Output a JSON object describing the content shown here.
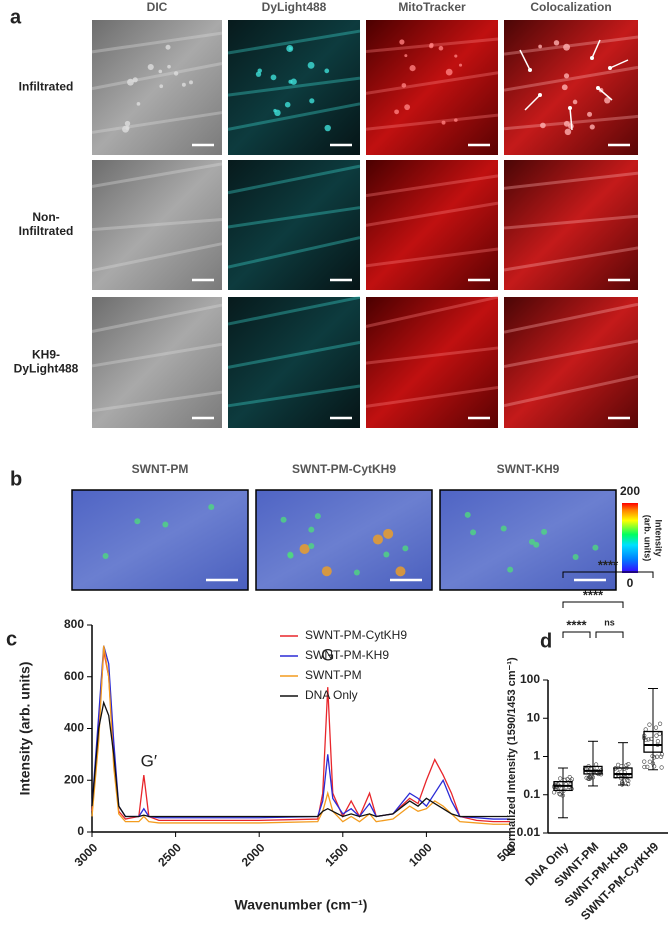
{
  "panel_a": {
    "label": "a",
    "columns": [
      "DIC",
      "DyLight488",
      "MitoTracker",
      "Colocalization"
    ],
    "rows": [
      "Infiltrated",
      "Non-\nInfiltrated",
      "KH9-\nDyLight488"
    ]
  },
  "panel_b": {
    "label": "b",
    "columns": [
      "SWNT-PM",
      "SWNT-PM-CytKH9",
      "SWNT-KH9"
    ],
    "colorbar": {
      "max": 200,
      "min": 0,
      "label": "Intensity\n(arb. units)"
    }
  },
  "panel_c_label": "c",
  "panel_d_label": "d",
  "chart_data": [
    {
      "type": "line",
      "x_label": "Wavenumber (cm⁻¹)",
      "y_label": "Intensity (arb. units)",
      "x": [
        3000,
        2960,
        2930,
        2900,
        2870,
        2840,
        2800,
        2720,
        2690,
        2660,
        2600,
        2400,
        2000,
        1650,
        1620,
        1590,
        1560,
        1500,
        1450,
        1400,
        1340,
        1300,
        1200,
        1100,
        1050,
        1000,
        950,
        900,
        850,
        800,
        700,
        600,
        500
      ],
      "series": [
        {
          "name": "SWNT-PM-CytKH9",
          "color": "#e8262b",
          "values": [
            80,
            400,
            700,
            600,
            300,
            80,
            50,
            60,
            220,
            60,
            45,
            45,
            45,
            50,
            150,
            560,
            150,
            60,
            120,
            60,
            150,
            60,
            70,
            130,
            110,
            200,
            280,
            220,
            150,
            60,
            45,
            40,
            40
          ]
        },
        {
          "name": "SWNT-PM-KH9",
          "color": "#2b2bd6",
          "values": [
            100,
            450,
            720,
            650,
            350,
            100,
            60,
            60,
            90,
            60,
            55,
            55,
            55,
            60,
            120,
            300,
            130,
            70,
            90,
            60,
            110,
            60,
            70,
            150,
            130,
            100,
            150,
            200,
            120,
            60,
            55,
            50,
            50
          ]
        },
        {
          "name": "SWNT-PM",
          "color": "#f39c1f",
          "values": [
            60,
            350,
            720,
            600,
            250,
            70,
            40,
            40,
            60,
            40,
            35,
            35,
            35,
            40,
            80,
            150,
            80,
            40,
            60,
            40,
            70,
            40,
            50,
            100,
            80,
            90,
            120,
            100,
            70,
            40,
            35,
            30,
            30
          ]
        },
        {
          "name": "DNA Only",
          "color": "#111111",
          "values": [
            100,
            400,
            500,
            450,
            300,
            100,
            60,
            60,
            65,
            60,
            60,
            60,
            60,
            60,
            80,
            90,
            80,
            60,
            70,
            60,
            70,
            60,
            70,
            120,
            100,
            130,
            110,
            90,
            70,
            60,
            60,
            60,
            60
          ]
        }
      ],
      "xlim": [
        3000,
        500
      ],
      "xticks": [
        3000,
        2500,
        2000,
        1500,
        1000,
        500
      ],
      "ylim": [
        0,
        800
      ],
      "yticks": [
        0,
        200,
        400,
        600,
        800
      ],
      "annotations": [
        {
          "text": "G′",
          "x": 2660,
          "y": 270
        },
        {
          "text": "G",
          "x": 1590,
          "y": 680
        }
      ],
      "legend": "top-right"
    },
    {
      "type": "box",
      "y_label": "Normalized Intensity (1590/1453 cm⁻¹)",
      "log_y": true,
      "categories": [
        "DNA Only",
        "SWNT-PM",
        "SWNT-PM-KH9",
        "SWNT-PM-CytKH9"
      ],
      "boxes": [
        {
          "min": 0.025,
          "q1": 0.13,
          "median": 0.17,
          "q3": 0.22,
          "max": 0.5
        },
        {
          "min": 0.17,
          "q1": 0.35,
          "median": 0.42,
          "q3": 0.55,
          "max": 2.5
        },
        {
          "min": 0.18,
          "q1": 0.28,
          "median": 0.35,
          "q3": 0.5,
          "max": 2.3
        },
        {
          "min": 0.45,
          "q1": 1.3,
          "median": 2.0,
          "q3": 4.5,
          "max": 60
        }
      ],
      "ylim": [
        0.01,
        100
      ],
      "yticks": [
        0.01,
        0.1,
        1,
        10,
        100
      ],
      "color": "#000000",
      "significance": [
        "****",
        "****",
        "****",
        "ns"
      ]
    }
  ]
}
